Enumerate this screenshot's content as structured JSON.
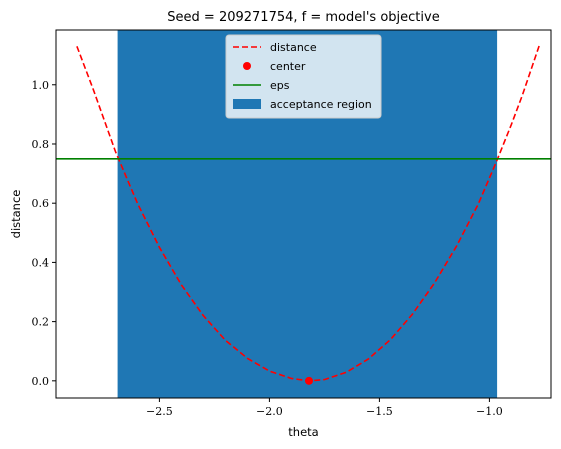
{
  "chart_data": {
    "type": "line",
    "title": "Seed = 209271754, f = model's objective",
    "xlabel": "theta",
    "ylabel": "distance",
    "xlim": [
      -2.97,
      -0.72
    ],
    "ylim": [
      -0.058,
      1.185
    ],
    "xticks": [
      -2.5,
      -2.0,
      -1.5,
      -1.0
    ],
    "xtick_labels": [
      "−2.5",
      "−2.0",
      "−1.5",
      "−1.0"
    ],
    "yticks": [
      0.0,
      0.2,
      0.4,
      0.6,
      0.8,
      1.0
    ],
    "ytick_labels": [
      "0.0",
      "0.2",
      "0.4",
      "0.6",
      "0.8",
      "1.0"
    ],
    "grid": false,
    "legend_position": "top-center",
    "legend": [
      {
        "key": "distance",
        "label": "distance"
      },
      {
        "key": "center",
        "label": "center"
      },
      {
        "key": "eps",
        "label": "eps"
      },
      {
        "key": "region",
        "label": "acceptance region"
      }
    ],
    "series": [
      {
        "name": "distance",
        "style": "dashed",
        "color": "#ff0000",
        "x": [
          -2.875,
          -2.8,
          -2.7,
          -2.6,
          -2.5,
          -2.4,
          -2.3,
          -2.2,
          -2.1,
          -2.0,
          -1.9,
          -1.82,
          -1.75,
          -1.65,
          -1.55,
          -1.45,
          -1.35,
          -1.25,
          -1.15,
          -1.05,
          -0.965,
          -0.9,
          -0.85,
          -0.77
        ],
        "y": [
          1.13,
          0.983,
          0.775,
          0.6,
          0.451,
          0.324,
          0.22,
          0.137,
          0.076,
          0.033,
          0.008,
          0.0,
          0.004,
          0.029,
          0.074,
          0.139,
          0.225,
          0.33,
          0.454,
          0.598,
          0.746,
          0.866,
          0.965,
          1.14
        ]
      }
    ],
    "center": {
      "name": "center",
      "x": -1.82,
      "y": 0.0,
      "color": "#ff0000"
    },
    "eps": {
      "name": "eps",
      "y": 0.75,
      "color": "#008000"
    },
    "acceptance_region": {
      "name": "acceptance region",
      "x_start": -2.69,
      "x_end": -0.965,
      "color": "#1f77b4"
    }
  }
}
